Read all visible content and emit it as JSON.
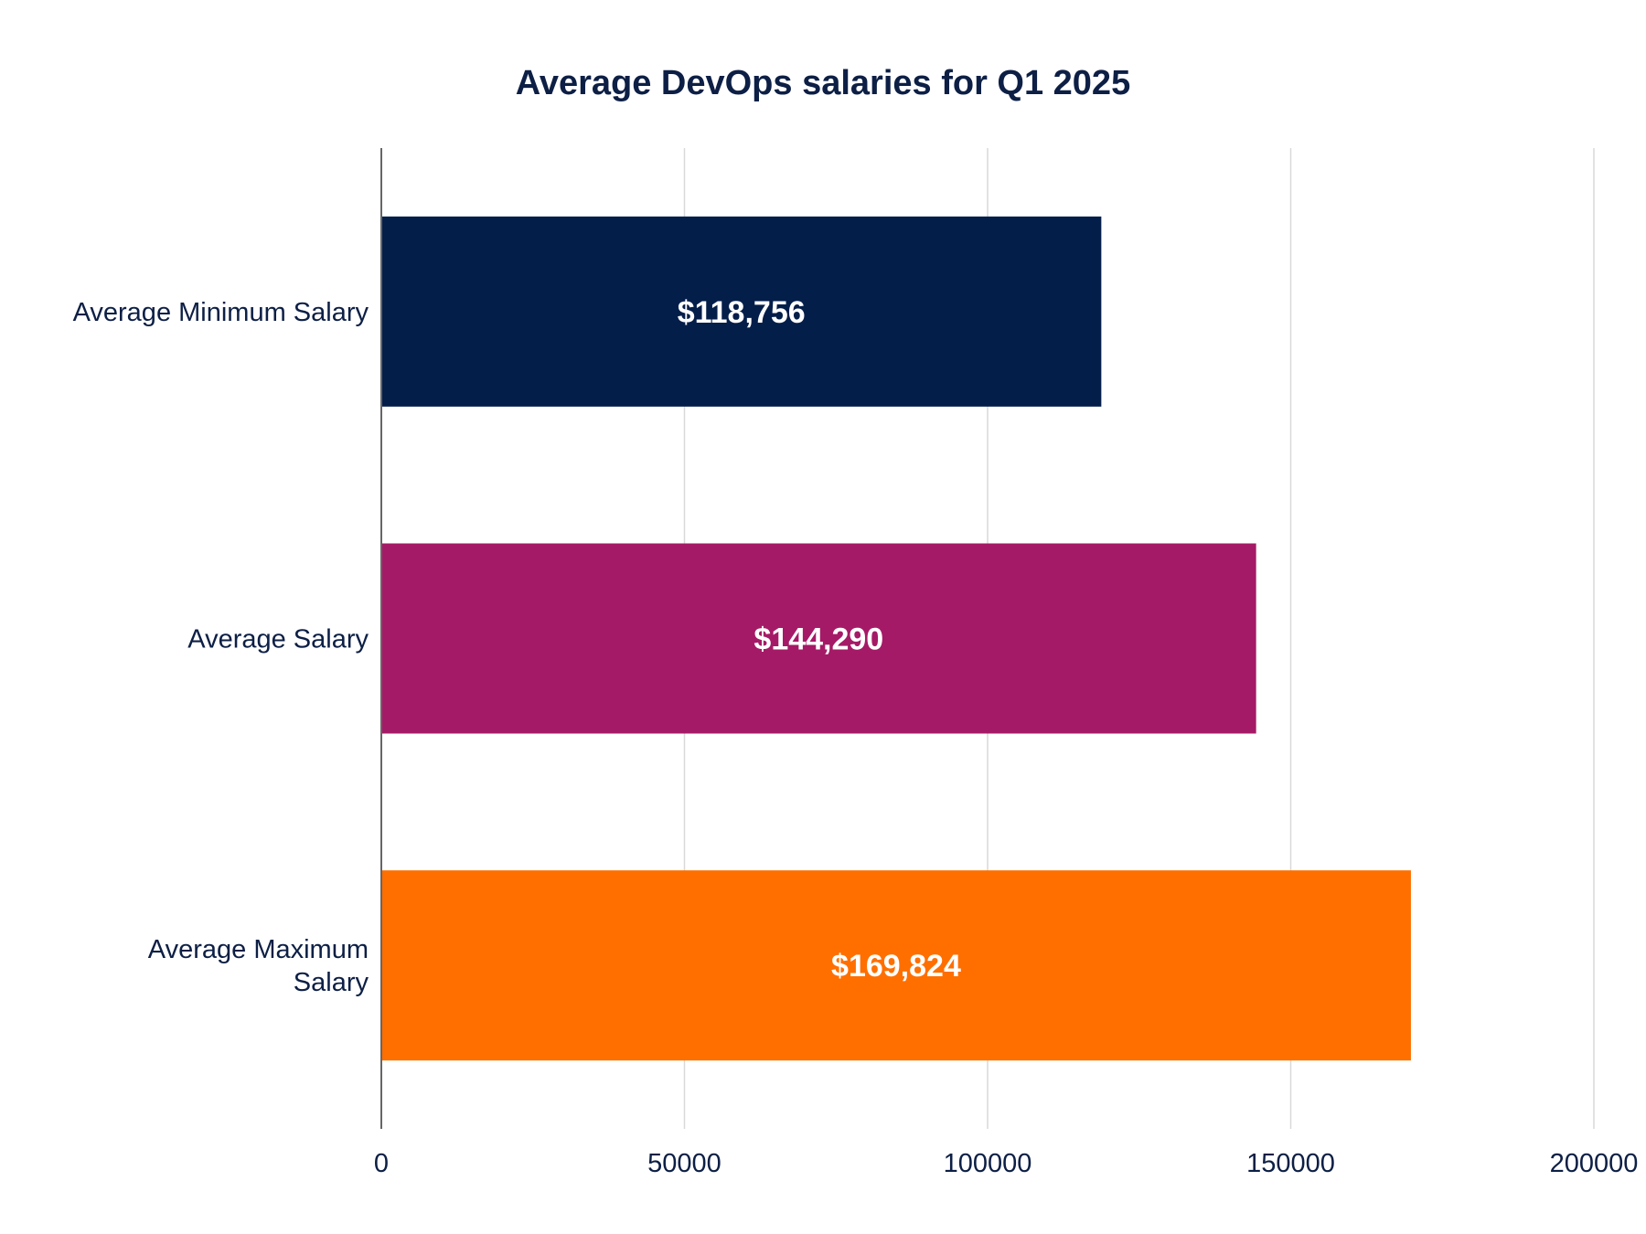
{
  "chart_data": {
    "type": "bar",
    "orientation": "horizontal",
    "title": "Average DevOps salaries for Q1 2025",
    "xlabel": "",
    "ylabel": "",
    "categories": [
      [
        "Average Minimum Salary"
      ],
      [
        "Average Salary"
      ],
      [
        "Average Maximum",
        "Salary"
      ]
    ],
    "values": [
      118756,
      144290,
      169824
    ],
    "data_labels": [
      "$118,756",
      "$144,290",
      "$169,824"
    ],
    "bar_colors": [
      "#041e4a",
      "#a51a66",
      "#ff6f00"
    ],
    "xlim": [
      0,
      200000
    ],
    "x_ticks": [
      0,
      50000,
      100000,
      150000,
      200000
    ],
    "x_tick_labels": [
      "0",
      "50000",
      "100000",
      "150000",
      "200000"
    ],
    "grid": true,
    "legend": "none"
  },
  "colors": {
    "text": "#0d1f45",
    "grid": "#d9d9d9",
    "axis": "#666666",
    "data_label": "#ffffff"
  }
}
